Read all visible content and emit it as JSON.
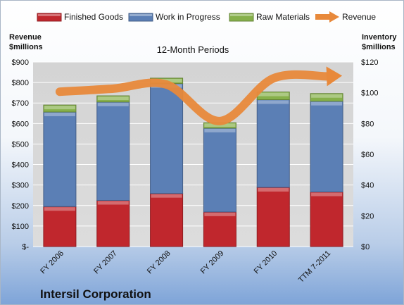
{
  "chart_data": {
    "type": "bar",
    "stacked": true,
    "title": "12-Month Periods",
    "footer": "Intersil Corporation",
    "categories": [
      "FY 2006",
      "FY 2007",
      "FY 2008",
      "FY 2009",
      "FY 2010",
      "TTM 7-2011"
    ],
    "left_axis": {
      "label_line1": "Revenue",
      "label_line2": "$millions",
      "range": [
        0,
        900
      ],
      "ticks": [
        0,
        100,
        200,
        300,
        400,
        500,
        600,
        700,
        800,
        900
      ],
      "tick_labels": [
        "$-",
        "$100",
        "$200",
        "$300",
        "$400",
        "$500",
        "$600",
        "$700",
        "$800",
        "$900"
      ]
    },
    "right_axis": {
      "label_line1": "Inventory",
      "label_line2": "$millions",
      "range": [
        0,
        120
      ],
      "ticks": [
        0,
        20,
        40,
        60,
        80,
        100,
        120
      ],
      "tick_labels": [
        "$0",
        "$20",
        "$40",
        "$60",
        "$80",
        "$100",
        "$120"
      ]
    },
    "series": [
      {
        "name": "Finished Goods",
        "axis": "right",
        "kind": "bar",
        "color": "#c0272d",
        "values": [
          26,
          30,
          34.5,
          22.5,
          38.5,
          35.5
        ]
      },
      {
        "name": "Work in Progress",
        "axis": "right",
        "kind": "bar",
        "color": "#5b7fb5",
        "values": [
          61.5,
          64,
          71.5,
          54.5,
          57,
          59
        ]
      },
      {
        "name": "Raw Materials",
        "axis": "right",
        "kind": "bar",
        "color": "#86b04a",
        "values": [
          4.5,
          4,
          3.5,
          3.5,
          5,
          5
        ]
      },
      {
        "name": "Revenue",
        "axis": "left",
        "kind": "line",
        "color": "#e8893b",
        "values": [
          755,
          770,
          790,
          612,
          820,
          830
        ]
      }
    ],
    "grid": true,
    "legend_position": "top"
  }
}
